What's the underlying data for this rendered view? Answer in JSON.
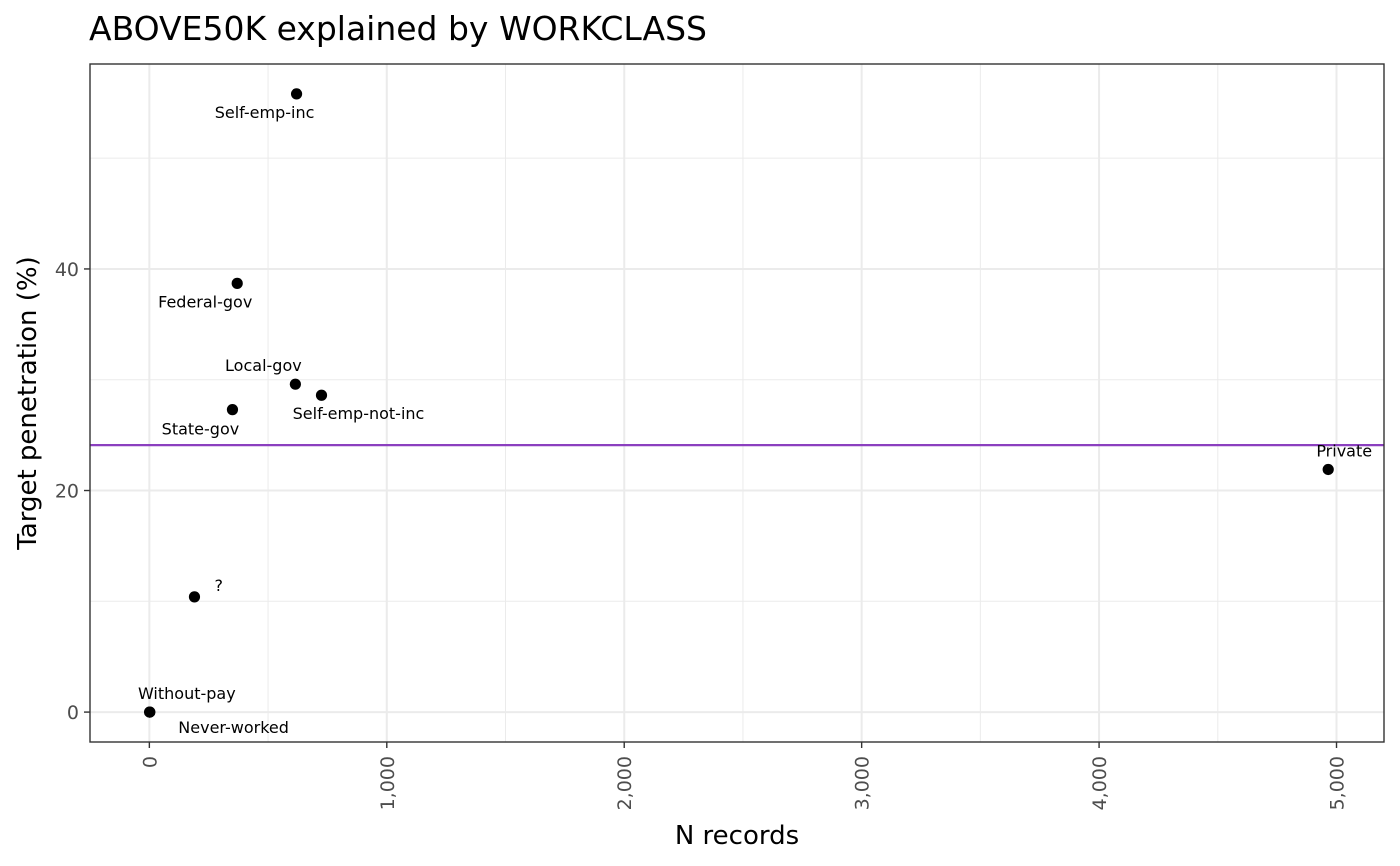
{
  "chart_data": {
    "type": "scatter",
    "title": "ABOVE50K explained by WORKCLASS",
    "xlabel": "N records",
    "ylabel": "Target penetration  (%)",
    "xlim": [
      -250,
      5200
    ],
    "ylim": [
      -2.7,
      58.5
    ],
    "x_ticks": [
      0,
      1000,
      2000,
      3000,
      4000,
      5000
    ],
    "x_tick_labels": [
      "0",
      "1,000",
      "2,000",
      "3,000",
      "4,000",
      "5,000"
    ],
    "y_ticks": [
      0,
      20,
      40
    ],
    "y_tick_labels": [
      "0",
      "20",
      "40"
    ],
    "grid": true,
    "reference_line": {
      "y": 24.1,
      "color": "#8b3fbf"
    },
    "points": [
      {
        "label": "Self-emp-inc",
        "x": 620,
        "y": 55.8
      },
      {
        "label": "Federal-gov",
        "x": 370,
        "y": 38.7
      },
      {
        "label": "Local-gov",
        "x": 615,
        "y": 29.6
      },
      {
        "label": "Self-emp-not-inc",
        "x": 725,
        "y": 28.6
      },
      {
        "label": "State-gov",
        "x": 350,
        "y": 27.3
      },
      {
        "label": "Private",
        "x": 4965,
        "y": 21.9
      },
      {
        "label": "?",
        "x": 190,
        "y": 10.4
      },
      {
        "label": "Without-pay",
        "x": 2,
        "y": 0.0
      },
      {
        "label": "Never-worked",
        "x": 1,
        "y": 0.0
      }
    ],
    "colors": {
      "points": "#000000",
      "reference_line": "#8b3fbf",
      "grid": "#ebebeb",
      "panel_border": "#333333"
    }
  }
}
